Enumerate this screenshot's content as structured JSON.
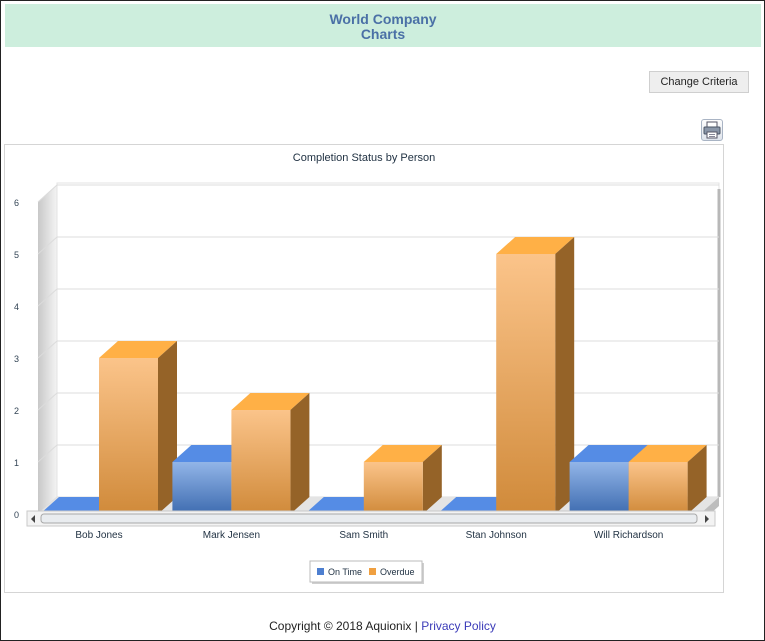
{
  "header": {
    "title_line1": "World Company",
    "title_line2": "Charts"
  },
  "toolbar": {
    "change_criteria_label": "Change Criteria",
    "print_icon": "printer-icon"
  },
  "footer": {
    "copyright": "Copyright © 2018 Aquionix | ",
    "privacy_link": "Privacy Policy"
  },
  "chart_data": {
    "type": "bar",
    "title": "Completion Status by Person",
    "categories": [
      "Bob Jones",
      "Mark Jensen",
      "Sam Smith",
      "Stan  Johnson",
      "Will Richardson"
    ],
    "series": [
      {
        "name": "On Time",
        "values": [
          0,
          1,
          0,
          0,
          1
        ],
        "color": "#4d7fd0"
      },
      {
        "name": "Overdue",
        "values": [
          3,
          2,
          1,
          5,
          1
        ],
        "color": "#f0a040"
      }
    ],
    "ylim": [
      0,
      6
    ],
    "yticks": [
      "0",
      "1",
      "2",
      "3",
      "4",
      "5",
      "6"
    ],
    "grid": true,
    "legend_position": "bottom-center",
    "style": "3d"
  }
}
